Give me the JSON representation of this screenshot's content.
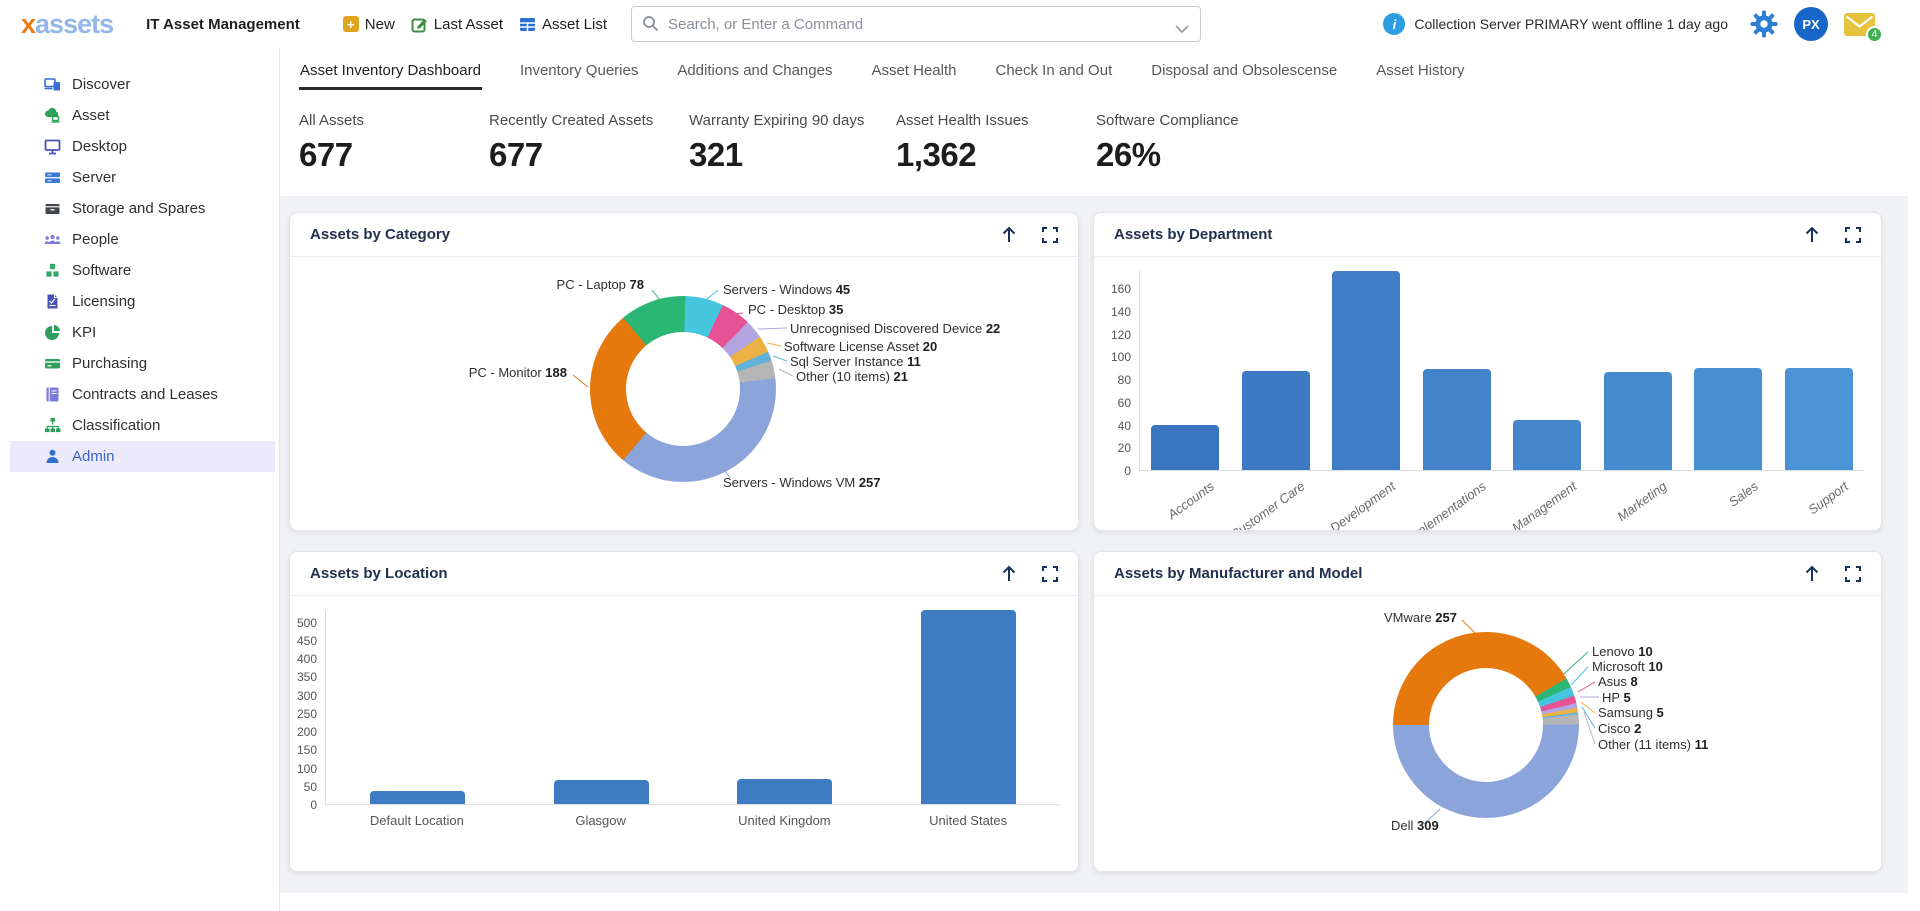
{
  "header": {
    "logo_x": "x",
    "logo_rest": "assets",
    "app_title": "IT Asset Management",
    "new_label": "New",
    "last_asset_label": "Last Asset",
    "asset_list_label": "Asset List",
    "search_placeholder": "Search, or Enter a Command",
    "notification": "Collection Server PRIMARY went offline 1 day ago",
    "avatar_initials": "PX",
    "mail_badge_count": "4"
  },
  "sidebar": {
    "items": [
      {
        "label": "Discover",
        "icon": "devices-icon",
        "active": false
      },
      {
        "label": "Asset",
        "icon": "asset-cloud-icon",
        "active": false
      },
      {
        "label": "Desktop",
        "icon": "monitor-icon",
        "active": false
      },
      {
        "label": "Server",
        "icon": "server-icon",
        "active": false
      },
      {
        "label": "Storage and Spares",
        "icon": "storage-box-icon",
        "active": false
      },
      {
        "label": "People",
        "icon": "people-icon",
        "active": false
      },
      {
        "label": "Software",
        "icon": "cubes-icon",
        "active": false
      },
      {
        "label": "Licensing",
        "icon": "license-doc-icon",
        "active": false
      },
      {
        "label": "KPI",
        "icon": "pie-chart-icon",
        "active": false
      },
      {
        "label": "Purchasing",
        "icon": "credit-card-icon",
        "active": false
      },
      {
        "label": "Contracts and Leases",
        "icon": "book-icon",
        "active": false
      },
      {
        "label": "Classification",
        "icon": "org-chart-icon",
        "active": false
      },
      {
        "label": "Admin",
        "icon": "person-icon",
        "active": true
      }
    ]
  },
  "tabs": [
    {
      "label": "Asset Inventory Dashboard",
      "active": true
    },
    {
      "label": "Inventory Queries",
      "active": false
    },
    {
      "label": "Additions and Changes",
      "active": false
    },
    {
      "label": "Asset Health",
      "active": false
    },
    {
      "label": "Check In and Out",
      "active": false
    },
    {
      "label": "Disposal and Obsolescense",
      "active": false
    },
    {
      "label": "Asset History",
      "active": false
    }
  ],
  "stats": [
    {
      "label": "All Assets",
      "value": "677"
    },
    {
      "label": "Recently Created Assets",
      "value": "677"
    },
    {
      "label": "Warranty Expiring 90 days",
      "value": "321"
    },
    {
      "label": "Asset Health Issues",
      "value": "1,362"
    },
    {
      "label": "Software Compliance",
      "value": "26%"
    }
  ],
  "chart_data": [
    {
      "type": "donut",
      "title": "Assets by Category",
      "start_deg": 320,
      "total": 677,
      "segments": [
        {
          "name": "PC - Laptop",
          "value": 78
        },
        {
          "name": "Servers - Windows",
          "value": 45
        },
        {
          "name": "PC - Desktop",
          "value": 35
        },
        {
          "name": "Unrecognised Discovered Device",
          "value": 22
        },
        {
          "name": "Software License Asset",
          "value": 20
        },
        {
          "name": "Sql Server Instance",
          "value": 11
        },
        {
          "name": "Other (10 items)",
          "value": 21
        },
        {
          "name": "Servers - Windows VM",
          "value": 257
        },
        {
          "name": "PC - Monitor",
          "value": 188
        }
      ],
      "colors": [
        "#2bb673",
        "#45c5de",
        "#e75294",
        "#b2a4e0",
        "#eab244",
        "#62b1d8",
        "#b5b5b5",
        "#8ba4da",
        "#e5790e"
      ]
    },
    {
      "type": "bar",
      "title": "Assets by Department",
      "categories": [
        "Accounts",
        "Customer Care",
        "Development",
        "Implementations",
        "Management",
        "Marketing",
        "Sales",
        "Support"
      ],
      "values": [
        40,
        88,
        176,
        89,
        44,
        87,
        90,
        90
      ],
      "ymax": 176,
      "yticks": [
        0,
        20,
        40,
        60,
        80,
        100,
        120,
        140,
        160
      ],
      "bar_colors": [
        "#3a76bf",
        "#3d7ac3",
        "#3f7ec6",
        "#4283c9",
        "#4487cc",
        "#478bcf",
        "#4990d2",
        "#4c94d5"
      ],
      "xlabel": "",
      "ylabel": ""
    },
    {
      "type": "bar",
      "title": "Assets by Location",
      "categories": [
        "Default Location",
        "Glasgow",
        "United Kingdom",
        "United States"
      ],
      "values": [
        35,
        65,
        70,
        535
      ],
      "ymax": 535,
      "yticks": [
        0,
        50,
        100,
        150,
        200,
        250,
        300,
        350,
        400,
        450,
        500
      ],
      "bar_colors": [
        "#3d7cc2",
        "#3d7cc2",
        "#3d7cc2",
        "#3d7cc2"
      ],
      "xlabel": "",
      "ylabel": ""
    },
    {
      "type": "donut",
      "title": "Assets by Manufacturer and Model",
      "start_deg": 270,
      "total": 617,
      "segments": [
        {
          "name": "VMware",
          "value": 257
        },
        {
          "name": "Lenovo",
          "value": 10
        },
        {
          "name": "Microsoft",
          "value": 10
        },
        {
          "name": "Asus",
          "value": 8
        },
        {
          "name": "HP",
          "value": 5
        },
        {
          "name": "Samsung",
          "value": 5
        },
        {
          "name": "Cisco",
          "value": 2
        },
        {
          "name": "Other (11 items)",
          "value": 11
        },
        {
          "name": "Dell",
          "value": 309
        }
      ],
      "colors": [
        "#e5790e",
        "#2bb673",
        "#45c5de",
        "#e75294",
        "#b2a4e0",
        "#eab244",
        "#62b1d8",
        "#b5b5b5",
        "#8ba4da"
      ]
    }
  ]
}
